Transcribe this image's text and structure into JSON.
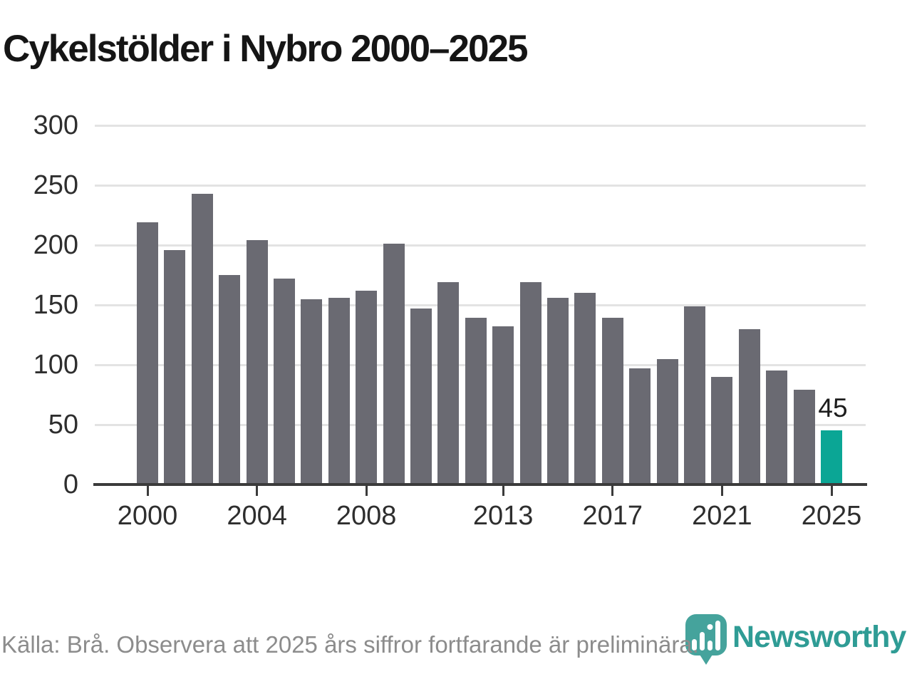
{
  "title": "Cykelstölder i Nybro 2000–2025",
  "footer": {
    "source_note": "Källa: Brå. Observera att 2025 års siffror fortfarande är preliminära."
  },
  "branding": {
    "name": "Newsworthy",
    "icon": "newsworthy-pin-barchart-icon"
  },
  "colors": {
    "bar": "#6a6a72",
    "highlight_bar": "#0ba695",
    "grid_line": "#e3e3e3",
    "axis_line": "#3b3b3b",
    "title_text": "#151515",
    "tick_text": "#2e2e2e",
    "value_label_text": "#1d1d1d",
    "footer_text": "#8c8c8c",
    "brand_teal": "#2f9c95",
    "brand_icon_teal": "#45a39c"
  },
  "chart_data": {
    "type": "bar",
    "title": "Cykelstölder i Nybro 2000–2025",
    "categories": [
      2000,
      2001,
      2002,
      2003,
      2004,
      2005,
      2006,
      2007,
      2008,
      2009,
      2010,
      2011,
      2012,
      2013,
      2014,
      2015,
      2016,
      2017,
      2018,
      2019,
      2020,
      2021,
      2022,
      2023,
      2024,
      2025
    ],
    "values": [
      219,
      196,
      243,
      175,
      204,
      172,
      155,
      156,
      162,
      201,
      147,
      169,
      139,
      132,
      169,
      156,
      160,
      139,
      97,
      105,
      149,
      90,
      130,
      95,
      79,
      45
    ],
    "ylim": [
      0,
      300
    ],
    "y_ticks": [
      0,
      50,
      100,
      150,
      200,
      250,
      300
    ],
    "x_labeled_ticks": [
      2000,
      2004,
      2008,
      2013,
      2017,
      2021,
      2025
    ],
    "grid": true,
    "legend": false,
    "highlight": {
      "category": 2025,
      "value_label": "45"
    }
  }
}
